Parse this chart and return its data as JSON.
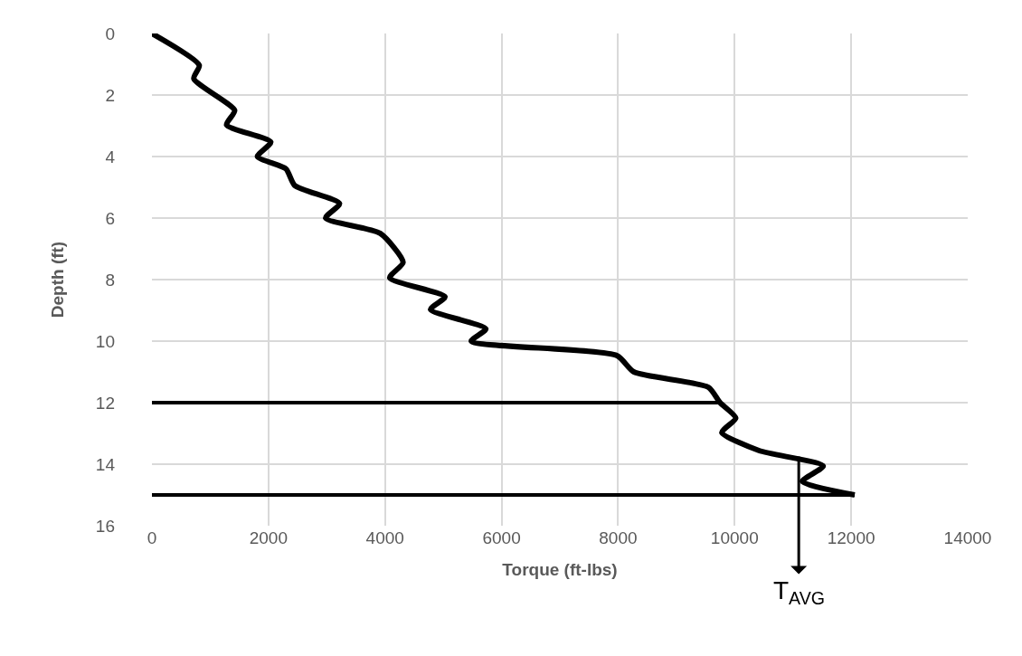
{
  "chart_data": {
    "type": "line",
    "xlabel": "Torque (ft-lbs)",
    "ylabel": "Depth (ft)",
    "xlim": [
      0,
      14000
    ],
    "xticks": [
      0,
      2000,
      4000,
      6000,
      8000,
      10000,
      12000,
      14000
    ],
    "ylim": [
      16,
      0
    ],
    "yticks": [
      0,
      2,
      4,
      6,
      8,
      10,
      12,
      14,
      16
    ],
    "grid": true,
    "marker": "none",
    "line_style": "solid",
    "series": [
      {
        "color": "#000000",
        "x": [
          0,
          812,
          719,
          1420,
          1280,
          2040,
          1810,
          2300,
          2450,
          3220,
          2980,
          3920,
          4310,
          4080,
          5030,
          4780,
          5730,
          5480,
          7980,
          8270,
          9550,
          9750,
          10020,
          9780,
          10420,
          11520,
          11160,
          12060
        ],
        "values": [
          0,
          1.03,
          1.47,
          2.5,
          2.97,
          3.53,
          4.0,
          4.4,
          4.94,
          5.53,
          6.0,
          6.5,
          7.44,
          7.94,
          8.56,
          8.97,
          9.6,
          10.0,
          10.47,
          11.0,
          11.5,
          12.0,
          12.5,
          12.97,
          13.56,
          14.06,
          14.56,
          15.0
        ]
      },
      {
        "color": "#000000",
        "x": [
          0,
          9750
        ],
        "values": [
          12,
          12
        ]
      },
      {
        "color": "#000000",
        "x": [
          0,
          12060
        ],
        "values": [
          15,
          15
        ]
      }
    ],
    "annotations": [
      {
        "text": "T$_{AVG}$",
        "x": 11100,
        "y": 13.75
      }
    ]
  }
}
